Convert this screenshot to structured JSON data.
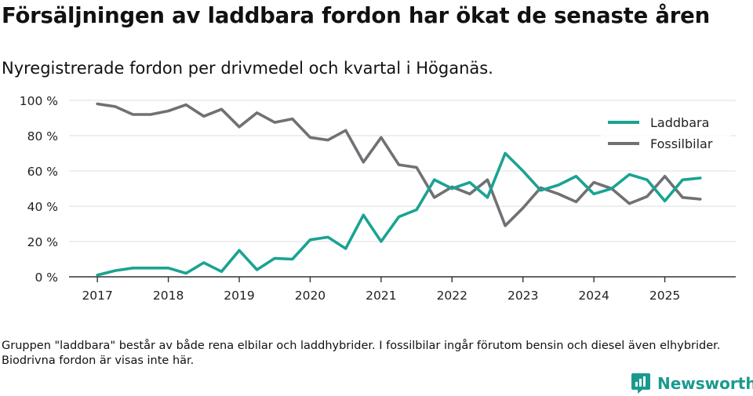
{
  "title": "Försäljningen av laddbara fordon har ökat de senaste åren",
  "subtitle": "Nyregistrerade fordon per drivmedel och kvartal i Höganäs.",
  "footnote": "Gruppen \"laddbara\" består av både rena elbilar och laddhybrider. I fossilbilar ingår förutom bensin och diesel även elhybrider. Biodrivna fordon är visas inte här.",
  "brand": {
    "name": "Newsworthy",
    "icon": "newsworthy-logo-icon"
  },
  "colors": {
    "laddbara": "#1aa392",
    "fossil": "#707075",
    "grid": "#dddddd",
    "axis": "#333333"
  },
  "chart_data": {
    "type": "line",
    "title": "Försäljningen av laddbara fordon har ökat de senaste åren",
    "xlabel": "",
    "ylabel": "",
    "ylim": [
      0,
      100
    ],
    "yticks": [
      0,
      20,
      40,
      60,
      80,
      100
    ],
    "ytick_labels": [
      "0 %",
      "20 %",
      "40 %",
      "60 %",
      "80 %",
      "100 %"
    ],
    "xticks": [
      2017,
      2018,
      2019,
      2020,
      2021,
      2022,
      2023,
      2024,
      2025
    ],
    "xtick_labels": [
      "2017",
      "2018",
      "2019",
      "2020",
      "2021",
      "2022",
      "2023",
      "2024",
      "2025"
    ],
    "xlim": [
      2016.6,
      2026.0
    ],
    "legend_position": "top-right",
    "x": [
      2017.0,
      2017.25,
      2017.5,
      2017.75,
      2018.0,
      2018.25,
      2018.5,
      2018.75,
      2019.0,
      2019.25,
      2019.5,
      2019.75,
      2020.0,
      2020.25,
      2020.5,
      2020.75,
      2021.0,
      2021.25,
      2021.5,
      2021.75,
      2022.0,
      2022.25,
      2022.5,
      2022.75,
      2023.0,
      2023.25,
      2023.5,
      2023.75,
      2024.0,
      2024.25,
      2024.5,
      2024.75,
      2025.0,
      2025.25,
      2025.5
    ],
    "series": [
      {
        "name": "Laddbara",
        "color": "#1aa392",
        "values": [
          1,
          3.5,
          5,
          5,
          5,
          2,
          8,
          3,
          15,
          4,
          10.5,
          10,
          21,
          22.5,
          16,
          35,
          20,
          34,
          38,
          55,
          50,
          53.5,
          45,
          70,
          60,
          49,
          52,
          57,
          47,
          50,
          58,
          55,
          43,
          55,
          56
        ]
      },
      {
        "name": "Fossilbilar",
        "color": "#707075",
        "values": [
          98,
          96.5,
          92,
          92,
          94,
          97.5,
          91,
          95,
          85,
          93,
          87.5,
          89.5,
          79,
          77.5,
          83,
          65,
          79,
          63.5,
          62,
          45,
          51,
          47,
          55,
          29,
          39,
          50.5,
          47,
          42.5,
          53.5,
          50,
          41.5,
          45.5,
          57,
          45,
          44
        ]
      }
    ]
  }
}
